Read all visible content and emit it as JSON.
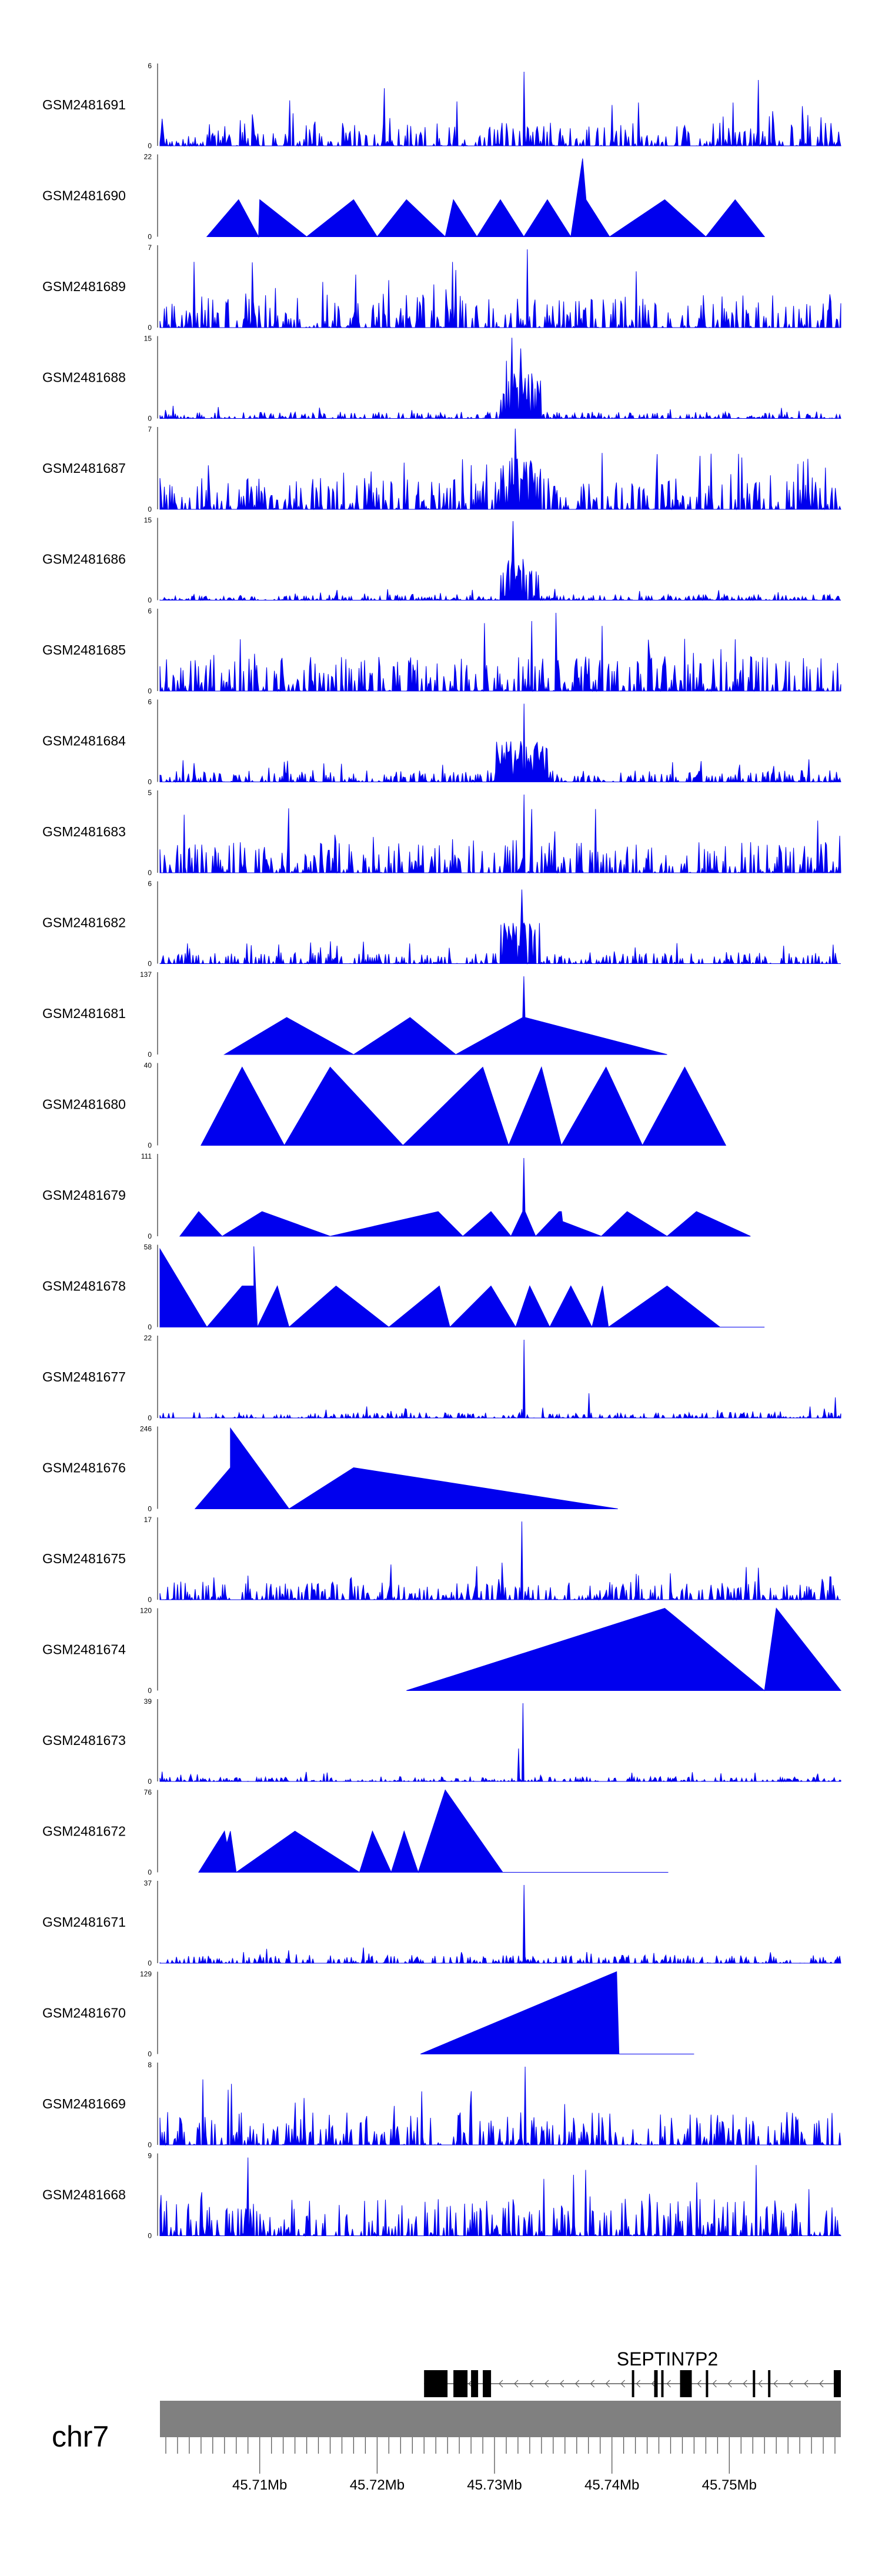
{
  "chart_data": {
    "type": "area",
    "title": "",
    "colors": {
      "coverage": "#0000ee",
      "gene": "#000000",
      "ideogram": "#808080",
      "axis": "#555555"
    },
    "x_range_mb": [
      45.7015,
      45.7595
    ],
    "tracks": [
      {
        "name": "GSM2481691",
        "ymax": "6",
        "kind": "dense",
        "seed": 11,
        "base": 0.28,
        "peaks": [
          [
            45.7325,
            0.9
          ],
          [
            45.7525,
            0.8
          ],
          [
            45.7206,
            0.7
          ]
        ]
      },
      {
        "name": "GSM2481690",
        "ymax": "22",
        "kind": "tri",
        "x": [
          45.7055,
          45.7082,
          45.7099,
          45.71,
          45.714,
          45.718,
          45.72,
          45.7225,
          45.7258,
          45.7265,
          45.7285,
          45.7305,
          45.7325,
          45.7345,
          45.7365,
          45.7375,
          45.7378,
          45.7398,
          45.7445,
          45.748,
          45.7505,
          45.753
        ],
        "y": [
          0,
          0.45,
          0,
          0.45,
          0,
          0.45,
          0,
          0.45,
          0,
          0.45,
          0,
          0.45,
          0,
          0.45,
          0,
          0.95,
          0.45,
          0,
          0.45,
          0,
          0.45,
          0
        ]
      },
      {
        "name": "GSM2481689",
        "ymax": "7",
        "kind": "dense",
        "seed": 23,
        "base": 0.4,
        "peaks": [
          [
            45.7328,
            0.95
          ]
        ]
      },
      {
        "name": "GSM2481688",
        "ymax": "15",
        "kind": "dense",
        "seed": 37,
        "base": 0.08,
        "peaks": [
          [
            45.7315,
            0.98
          ],
          [
            45.7322,
            0.85
          ],
          [
            45.731,
            0.7
          ]
        ],
        "cluster": [
          45.7305,
          45.734,
          0.55
        ]
      },
      {
        "name": "GSM2481687",
        "ymax": "7",
        "kind": "dense",
        "seed": 41,
        "base": 0.38,
        "peaks": [
          [
            45.7318,
            0.98
          ]
        ],
        "cluster": [
          45.7305,
          45.734,
          0.65
        ]
      },
      {
        "name": "GSM2481686",
        "ymax": "15",
        "kind": "dense",
        "seed": 53,
        "base": 0.07,
        "peaks": [
          [
            45.7316,
            0.96
          ]
        ],
        "cluster": [
          45.7305,
          45.734,
          0.5
        ]
      },
      {
        "name": "GSM2481685",
        "ymax": "6",
        "kind": "dense",
        "seed": 61,
        "base": 0.42,
        "peaks": [
          [
            45.7352,
            0.95
          ],
          [
            45.7332,
            0.85
          ]
        ]
      },
      {
        "name": "GSM2481684",
        "ymax": "6",
        "kind": "dense",
        "seed": 71,
        "base": 0.14,
        "peaks": [
          [
            45.7325,
            0.95
          ]
        ],
        "cluster": [
          45.73,
          45.7345,
          0.5
        ]
      },
      {
        "name": "GSM2481683",
        "ymax": "5",
        "kind": "dense",
        "seed": 83,
        "base": 0.4,
        "peaks": [
          [
            45.7325,
            0.95
          ]
        ]
      },
      {
        "name": "GSM2481682",
        "ymax": "6",
        "kind": "dense",
        "seed": 97,
        "base": 0.14,
        "peaks": [
          [
            45.7323,
            0.9
          ]
        ],
        "cluster": [
          45.7305,
          45.734,
          0.5
        ]
      },
      {
        "name": "GSM2481681",
        "ymax": "137",
        "kind": "tri",
        "x": [
          45.707,
          45.7123,
          45.718,
          45.7228,
          45.7267,
          45.7324,
          45.7325,
          45.7326,
          45.7447
        ],
        "y": [
          0,
          0.45,
          0,
          0.45,
          0,
          0.45,
          0.95,
          0.45,
          0
        ]
      },
      {
        "name": "GSM2481680",
        "ymax": "40",
        "kind": "tri",
        "x": [
          45.705,
          45.7085,
          45.7121,
          45.716,
          45.7222,
          45.729,
          45.7312,
          45.734,
          45.7357,
          45.7395,
          45.7426,
          45.7462,
          45.7497
        ],
        "y": [
          0,
          0.95,
          0,
          0.95,
          0,
          0.95,
          0,
          0.95,
          0,
          0.95,
          0,
          0.95,
          0
        ]
      },
      {
        "name": "GSM2481679",
        "ymax": "111",
        "kind": "tri",
        "x": [
          45.7032,
          45.7048,
          45.7068,
          45.7102,
          45.716,
          45.7252,
          45.7273,
          45.7297,
          45.7314,
          45.7324,
          45.7325,
          45.7326,
          45.7335,
          45.7355,
          45.7357,
          45.7358,
          45.7391,
          45.7413,
          45.7447,
          45.7472,
          45.7518
        ],
        "y": [
          0,
          0.3,
          0,
          0.3,
          0,
          0.3,
          0,
          0.3,
          0,
          0.3,
          0.95,
          0.3,
          0,
          0.3,
          0.3,
          0.18,
          0,
          0.3,
          0,
          0.3,
          0
        ]
      },
      {
        "name": "GSM2481678",
        "ymax": "58",
        "kind": "tri",
        "x": [
          45.7015,
          45.7055,
          45.7085,
          45.7095,
          45.7095,
          45.7098,
          45.7115,
          45.7125,
          45.7165,
          45.721,
          45.7253,
          45.7262,
          45.7297,
          45.7318,
          45.733,
          45.7347,
          45.7365,
          45.7383,
          45.7392,
          45.7397,
          45.7447,
          45.7492,
          45.753
        ],
        "y": [
          0.95,
          0,
          0.5,
          0.5,
          0.98,
          0,
          0.5,
          0,
          0.5,
          0,
          0.5,
          0,
          0.5,
          0,
          0.5,
          0,
          0.5,
          0,
          0.5,
          0,
          0.5,
          0,
          0
        ]
      },
      {
        "name": "GSM2481677",
        "ymax": "22",
        "kind": "dense",
        "seed": 103,
        "base": 0.07,
        "peaks": [
          [
            45.7325,
            0.95
          ],
          [
            45.738,
            0.3
          ],
          [
            45.759,
            0.25
          ]
        ]
      },
      {
        "name": "GSM2481676",
        "ymax": "246",
        "kind": "tri",
        "x": [
          45.7045,
          45.7075,
          45.7075,
          45.7125,
          45.718,
          45.7405
        ],
        "y": [
          0,
          0.5,
          0.98,
          0,
          0.5,
          0
        ]
      },
      {
        "name": "GSM2481675",
        "ymax": "17",
        "kind": "dense",
        "seed": 113,
        "base": 0.22,
        "peaks": [
          [
            45.7323,
            0.95
          ],
          [
            45.7306,
            0.45
          ]
        ]
      },
      {
        "name": "GSM2481674",
        "ymax": "120",
        "kind": "tri",
        "x": [
          45.7225,
          45.7445,
          45.753,
          45.754,
          45.7595
        ],
        "y": [
          0,
          1.0,
          0,
          1.0,
          0
        ]
      },
      {
        "name": "GSM2481673",
        "ymax": "39",
        "kind": "dense",
        "seed": 127,
        "base": 0.06,
        "peaks": [
          [
            45.7324,
            0.95
          ],
          [
            45.732,
            0.4
          ]
        ]
      },
      {
        "name": "GSM2481672",
        "ymax": "76",
        "kind": "tri",
        "x": [
          45.7048,
          45.707,
          45.7072,
          45.7075,
          45.708,
          45.713,
          45.7185,
          45.7196,
          45.7212,
          45.7223,
          45.7235,
          45.7258,
          45.7307,
          45.7448
        ],
        "y": [
          0,
          0.5,
          0.35,
          0.5,
          0,
          0.5,
          0,
          0.5,
          0,
          0.5,
          0,
          1.0,
          0,
          0
        ]
      },
      {
        "name": "GSM2481671",
        "ymax": "37",
        "kind": "dense",
        "seed": 131,
        "base": 0.1,
        "peaks": [
          [
            45.7325,
            0.95
          ]
        ]
      },
      {
        "name": "GSM2481670",
        "ymax": "129",
        "kind": "tri",
        "x": [
          45.7237,
          45.7404,
          45.7406,
          45.747
        ],
        "y": [
          0,
          1.0,
          0,
          0
        ]
      },
      {
        "name": "GSM2481669",
        "ymax": "8",
        "kind": "dense",
        "seed": 139,
        "base": 0.4,
        "peaks": [
          [
            45.7326,
            0.95
          ]
        ]
      },
      {
        "name": "GSM2481668",
        "ymax": "9",
        "kind": "dense",
        "seed": 149,
        "base": 0.45,
        "peaks": [
          [
            45.709,
            0.95
          ],
          [
            45.7378,
            0.8
          ]
        ]
      }
    ],
    "gene": {
      "name": "SEPTIN7P2",
      "start_mb": 45.724,
      "end_mb": 45.7595,
      "strand": "-",
      "exons": [
        [
          45.724,
          45.726
        ],
        [
          45.7265,
          45.7277
        ],
        [
          45.728,
          45.7286
        ],
        [
          45.729,
          45.7297
        ],
        [
          45.7417,
          45.7419
        ],
        [
          45.7436,
          45.7439
        ],
        [
          45.7442,
          45.7444
        ],
        [
          45.7458,
          45.7468
        ],
        [
          45.748,
          45.7482
        ],
        [
          45.752,
          45.7522
        ],
        [
          45.7533,
          45.7535
        ],
        [
          45.7589,
          45.7595
        ]
      ]
    },
    "chromosome": "chr7",
    "x_ticks_mb": [
      45.702,
      45.703,
      45.704,
      45.705,
      45.706,
      45.707,
      45.708,
      45.709,
      45.71,
      45.711,
      45.712,
      45.713,
      45.714,
      45.715,
      45.716,
      45.717,
      45.718,
      45.719,
      45.72,
      45.721,
      45.722,
      45.723,
      45.724,
      45.725,
      45.726,
      45.727,
      45.728,
      45.729,
      45.73,
      45.731,
      45.732,
      45.733,
      45.734,
      45.735,
      45.736,
      45.737,
      45.738,
      45.739,
      45.74,
      45.741,
      45.742,
      45.743,
      45.744,
      45.745,
      45.746,
      45.747,
      45.748,
      45.749,
      45.75,
      45.751,
      45.752,
      45.753,
      45.754,
      45.755,
      45.756,
      45.757,
      45.758,
      45.759
    ],
    "x_tick_labels": [
      {
        "mb": 45.71,
        "label": "45.71Mb"
      },
      {
        "mb": 45.72,
        "label": "45.72Mb"
      },
      {
        "mb": 45.73,
        "label": "45.73Mb"
      },
      {
        "mb": 45.74,
        "label": "45.74Mb"
      },
      {
        "mb": 45.75,
        "label": "45.75Mb"
      }
    ]
  }
}
